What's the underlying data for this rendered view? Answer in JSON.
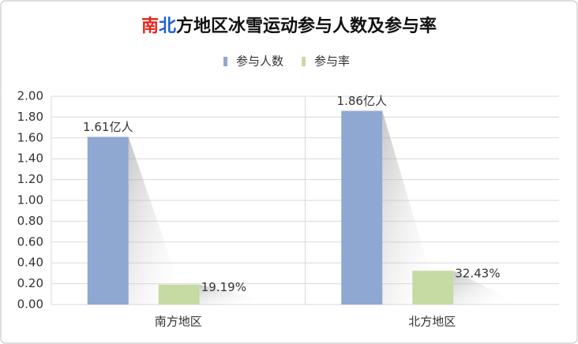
{
  "chart_data": {
    "type": "bar",
    "title": [
      {
        "text": "南",
        "color": "#e8251f"
      },
      {
        "text": "北",
        "color": "#1f5fd6"
      },
      {
        "text": "方地区冰雪运动参与人数及参与率",
        "color": "#111111"
      }
    ],
    "categories": [
      "南方地区",
      "北方地区"
    ],
    "series": [
      {
        "name": "参与人数",
        "color": "#8fa8d2",
        "values": [
          1.61,
          1.86
        ],
        "value_labels": [
          "1.61亿人",
          "1.86亿人"
        ]
      },
      {
        "name": "参与率",
        "color": "#c6dba3",
        "values": [
          0.1919,
          0.3243
        ],
        "value_labels": [
          "19.19%",
          "32.43%"
        ]
      }
    ],
    "ylim": [
      0,
      2
    ],
    "yticks": [
      {
        "value": 0,
        "label": "0.00"
      },
      {
        "value": 0.2,
        "label": "0.20"
      },
      {
        "value": 0.4,
        "label": "0.40"
      },
      {
        "value": 0.6,
        "label": "0.60"
      },
      {
        "value": 0.8,
        "label": "0.80"
      },
      {
        "value": 1,
        "label": "1.00"
      },
      {
        "value": 1.2,
        "label": "1.20"
      },
      {
        "value": 1.4,
        "label": "1.40"
      },
      {
        "value": 1.6,
        "label": "1.60"
      },
      {
        "value": 1.8,
        "label": "1.80"
      },
      {
        "value": 2,
        "label": "2.00"
      }
    ],
    "grid": true,
    "legend": "top"
  }
}
